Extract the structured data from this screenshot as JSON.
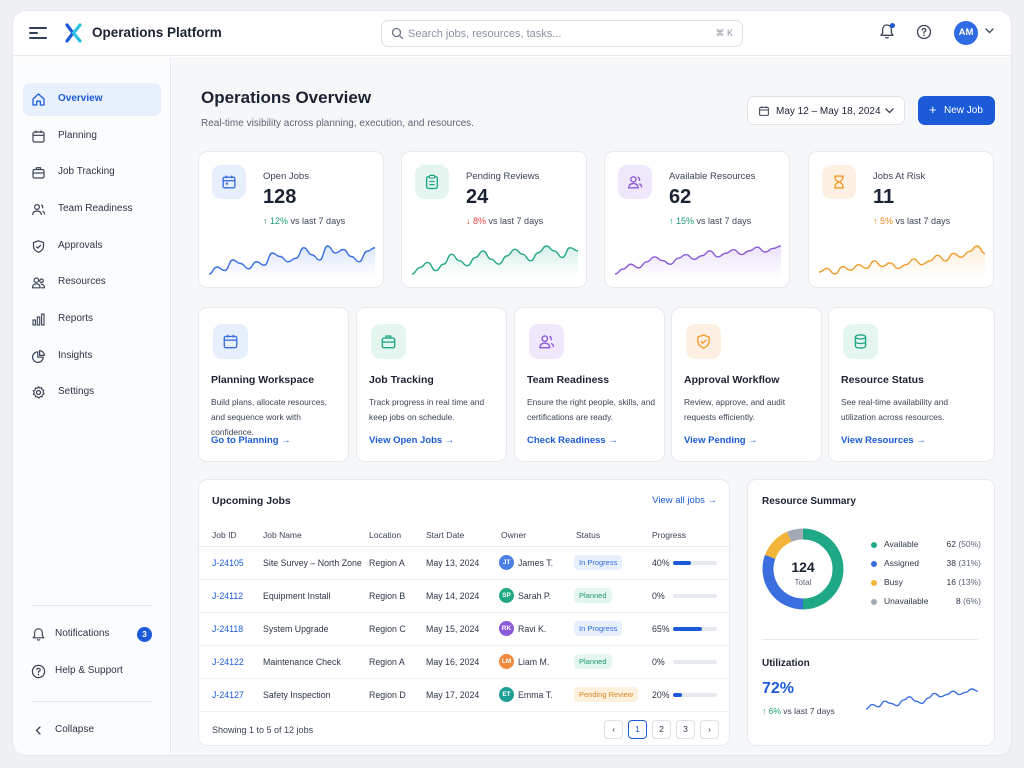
{
  "app": {
    "title": "Operations Platform"
  },
  "search": {
    "placeholder": "Search jobs, resources, tasks...",
    "shortcut": "⌘ K"
  },
  "user": {
    "initials": "AM"
  },
  "sidebar": {
    "items": [
      {
        "label": "Overview",
        "icon": "home-icon",
        "active": true
      },
      {
        "label": "Planning",
        "icon": "calendar-icon"
      },
      {
        "label": "Job Tracking",
        "icon": "briefcase-icon"
      },
      {
        "label": "Team Readiness",
        "icon": "users-icon"
      },
      {
        "label": "Approvals",
        "icon": "shield-check-icon"
      },
      {
        "label": "Resources",
        "icon": "resources-icon"
      },
      {
        "label": "Reports",
        "icon": "bar-chart-icon"
      },
      {
        "label": "Insights",
        "icon": "pie-chart-icon"
      },
      {
        "label": "Settings",
        "icon": "gear-icon"
      }
    ],
    "notifications": {
      "label": "Notifications",
      "count": "3"
    },
    "help": {
      "label": "Help & Support"
    },
    "collapse": {
      "label": "Collapse"
    }
  },
  "header": {
    "title": "Operations Overview",
    "subtitle": "Real-time visibility across planning, execution, and resources.",
    "date_range": "May 12 – May 18, 2024",
    "new_job": "New Job"
  },
  "stats": [
    {
      "title": "Open Jobs",
      "value": "128",
      "change": "12%",
      "direction": "up",
      "suffix": "vs last 7 days",
      "color": "#3b6fe0",
      "icon_bg": "#e8effc",
      "icon": "calendar-icon",
      "trend": [
        40,
        44,
        42,
        48,
        46,
        43,
        47,
        45,
        52,
        50,
        47,
        49,
        55,
        51,
        48,
        56,
        52,
        54,
        50,
        47,
        53,
        55
      ]
    },
    {
      "title": "Pending Reviews",
      "value": "24",
      "change": "8%",
      "direction": "down",
      "suffix": "vs last 7 days",
      "color": "#1fa885",
      "icon_bg": "#e4f6ef",
      "icon": "clipboard-icon",
      "trend": [
        38,
        42,
        45,
        40,
        44,
        50,
        46,
        43,
        48,
        52,
        47,
        44,
        49,
        53,
        50,
        46,
        51,
        55,
        52,
        48,
        54,
        52
      ]
    },
    {
      "title": "Available Resources",
      "value": "62",
      "change": "15%",
      "direction": "up",
      "suffix": "vs last 7 days",
      "color": "#8b5ad8",
      "icon_bg": "#efe8fb",
      "icon": "users-icon",
      "trend": [
        36,
        40,
        44,
        41,
        46,
        50,
        47,
        44,
        49,
        52,
        48,
        51,
        55,
        50,
        53,
        56,
        52,
        55,
        58,
        54,
        57,
        59
      ]
    },
    {
      "title": "Jobs At Risk",
      "value": "11",
      "change": "5%",
      "direction": "warn",
      "suffix": "vs last 7 days",
      "color": "#f09a26",
      "icon_bg": "#fdf0e2",
      "icon": "hourglass-icon",
      "trend": [
        42,
        44,
        41,
        45,
        43,
        46,
        44,
        48,
        45,
        47,
        44,
        46,
        49,
        46,
        48,
        51,
        48,
        52,
        50,
        53,
        56,
        52
      ]
    }
  ],
  "features": [
    {
      "title": "Planning Workspace",
      "desc": "Build plans, allocate resources, and sequence work with confidence.",
      "link": "Go to Planning",
      "icon": "calendar-icon",
      "color": "#3b6fe0",
      "bg": "#e8effc"
    },
    {
      "title": "Job Tracking",
      "desc": "Track progress in real time and keep jobs on schedule.",
      "link": "View Open Jobs",
      "icon": "briefcase-icon",
      "color": "#1fa885",
      "bg": "#e4f6ef"
    },
    {
      "title": "Team Readiness",
      "desc": "Ensure the right people, skills, and certifications are ready.",
      "link": "Check Readiness",
      "icon": "users-icon",
      "color": "#8b5ad8",
      "bg": "#efe8fb"
    },
    {
      "title": "Approval Workflow",
      "desc": "Review, approve, and audit requests efficiently.",
      "link": "View Pending",
      "icon": "shield-check-icon",
      "color": "#f09a26",
      "bg": "#fdf0e2"
    },
    {
      "title": "Resource Status",
      "desc": "See real-time availability and utilization across resources.",
      "link": "View Resources",
      "icon": "database-icon",
      "color": "#1fa885",
      "bg": "#e4f6ef"
    }
  ],
  "jobs": {
    "title": "Upcoming Jobs",
    "view_all": "View all jobs",
    "columns": [
      "Job ID",
      "Job Name",
      "Location",
      "Start Date",
      "Owner",
      "Status",
      "Progress"
    ],
    "rows": [
      {
        "id": "J-24105",
        "name": "Site Survey – North Zone",
        "location": "Region A",
        "date": "May 13, 2024",
        "owner": "James T.",
        "initials": "JT",
        "avatar_color": "#4a7fe3",
        "status": "In Progress",
        "status_fg": "#2f6be5",
        "status_bg": "#e8effc",
        "progress": 40
      },
      {
        "id": "J-24112",
        "name": "Equipment Install",
        "location": "Region B",
        "date": "May 14, 2024",
        "owner": "Sarah P.",
        "initials": "SP",
        "avatar_color": "#1fa885",
        "status": "Planned",
        "status_fg": "#1a9b6b",
        "status_bg": "#e4f6ef",
        "progress": 0
      },
      {
        "id": "J-24118",
        "name": "System Upgrade",
        "location": "Region C",
        "date": "May 15, 2024",
        "owner": "Ravi K.",
        "initials": "RK",
        "avatar_color": "#8b5ad8",
        "status": "In Progress",
        "status_fg": "#2f6be5",
        "status_bg": "#e8effc",
        "progress": 65
      },
      {
        "id": "J-24122",
        "name": "Maintenance Check",
        "location": "Region A",
        "date": "May 16, 2024",
        "owner": "Liam M.",
        "initials": "LM",
        "avatar_color": "#f0893a",
        "status": "Planned",
        "status_fg": "#1a9b6b",
        "status_bg": "#e4f6ef",
        "progress": 0
      },
      {
        "id": "J-24127",
        "name": "Safety Inspection",
        "location": "Region D",
        "date": "May 17, 2024",
        "owner": "Emma T.",
        "initials": "ET",
        "avatar_color": "#1f9e93",
        "status": "Pending Review",
        "status_fg": "#d9861a",
        "status_bg": "#fdf1de",
        "progress": 20
      }
    ],
    "showing": "Showing 1 to 5 of 12 jobs",
    "pages": [
      "1",
      "2",
      "3"
    ]
  },
  "resources": {
    "title": "Resource Summary",
    "total": "124",
    "total_label": "Total",
    "legend": [
      {
        "name": "Available",
        "value": 62,
        "count": "62",
        "pct": "(50%)",
        "color": "#1fa885"
      },
      {
        "name": "Assigned",
        "value": 38,
        "count": "38",
        "pct": "(31%)",
        "color": "#3b6fe0"
      },
      {
        "name": "Busy",
        "value": 16,
        "count": "16",
        "pct": "(13%)",
        "color": "#f2b53a"
      },
      {
        "name": "Unavailable",
        "value": 8,
        "count": "8",
        "pct": "(6%)",
        "color": "#a3a9b4"
      }
    ],
    "utilization": {
      "title": "Utilization",
      "value": "72%",
      "change": "6%",
      "suffix": "vs last 7 days",
      "color": "#3b6fe0",
      "trend": [
        42,
        46,
        44,
        49,
        47,
        45,
        50,
        53,
        49,
        47,
        52,
        56,
        53,
        55,
        58,
        55,
        57,
        60,
        58
      ]
    }
  }
}
